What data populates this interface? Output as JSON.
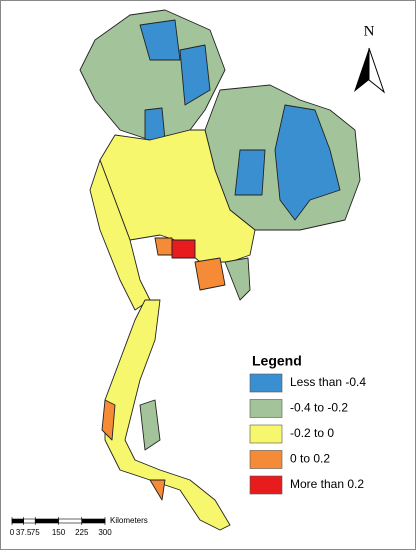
{
  "north_arrow": {
    "label": "N"
  },
  "legend": {
    "title": "Legend",
    "items": [
      {
        "label": "Less than -0.4",
        "color": "#3a8fd0"
      },
      {
        "label": "-0.4 to -0.2",
        "color": "#a3c49a"
      },
      {
        "label": "-0.2  to 0",
        "color": "#f7f76e"
      },
      {
        "label": "0 to 0.2",
        "color": "#f58a37"
      },
      {
        "label": "More than 0.2",
        "color": "#e81c1c"
      }
    ]
  },
  "scale_bar": {
    "ticks": [
      0,
      37.5,
      75,
      150,
      225,
      300
    ],
    "unit": "Kilometers"
  }
}
